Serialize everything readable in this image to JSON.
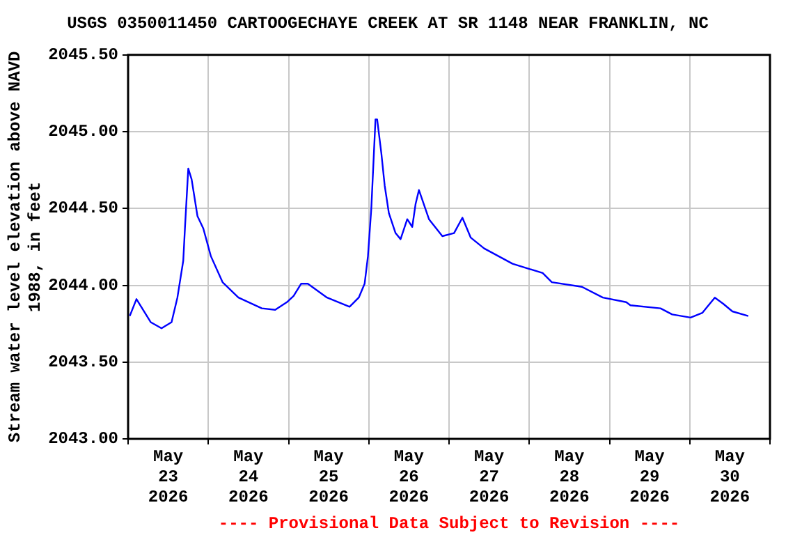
{
  "chart_data": {
    "type": "line",
    "title": "USGS 0350011450 CARTOOGECHAYE CREEK AT SR 1148 NEAR FRANKLIN, NC",
    "ylabel": "Stream water level elevation above NAVD 1988, in feet",
    "annotations": [
      "---- Provisional Data Subject to Revision ----"
    ],
    "x": [
      "2026-05-23T00:30",
      "2026-05-23T02:30",
      "2026-05-23T04:30",
      "2026-05-23T06:45",
      "2026-05-23T10:00",
      "2026-05-23T13:00",
      "2026-05-23T14:45",
      "2026-05-23T16:30",
      "2026-05-23T17:00",
      "2026-05-23T18:00",
      "2026-05-23T19:00",
      "2026-05-23T20:45",
      "2026-05-23T22:30",
      "2026-05-24T00:45",
      "2026-05-24T04:15",
      "2026-05-24T09:00",
      "2026-05-24T16:00",
      "2026-05-24T20:00",
      "2026-05-24T23:30",
      "2026-05-25T01:30",
      "2026-05-25T03:45",
      "2026-05-25T05:45",
      "2026-05-25T11:30",
      "2026-05-25T18:15",
      "2026-05-25T21:00",
      "2026-05-25T22:45",
      "2026-05-25T23:45",
      "2026-05-26T00:45",
      "2026-05-26T02:00",
      "2026-05-26T02:30",
      "2026-05-26T03:45",
      "2026-05-26T04:45",
      "2026-05-26T06:00",
      "2026-05-26T08:00",
      "2026-05-26T09:30",
      "2026-05-26T11:30",
      "2026-05-26T13:00",
      "2026-05-26T14:00",
      "2026-05-26T15:00",
      "2026-05-26T18:00",
      "2026-05-26T22:00",
      "2026-05-27T01:30",
      "2026-05-27T04:00",
      "2026-05-27T06:30",
      "2026-05-27T10:30",
      "2026-05-27T19:00",
      "2026-05-28T04:00",
      "2026-05-28T06:45",
      "2026-05-28T15:45",
      "2026-05-28T22:00",
      "2026-05-29T05:00",
      "2026-05-29T06:15",
      "2026-05-29T15:15",
      "2026-05-29T18:45",
      "2026-05-30T00:15",
      "2026-05-30T03:45",
      "2026-05-30T07:30",
      "2026-05-30T10:00",
      "2026-05-30T12:45",
      "2026-05-30T17:30"
    ],
    "series": [
      {
        "color": "#0000ff",
        "values": [
          2043.8,
          2043.91,
          2043.84,
          2043.76,
          2043.72,
          2043.76,
          2043.92,
          2044.16,
          2044.37,
          2044.76,
          2044.69,
          2044.45,
          2044.37,
          2044.19,
          2044.02,
          2043.92,
          2043.85,
          2043.84,
          2043.89,
          2043.93,
          2044.01,
          2044.01,
          2043.92,
          2043.86,
          2043.92,
          2044.01,
          2044.19,
          2044.5,
          2045.08,
          2045.08,
          2044.86,
          2044.65,
          2044.47,
          2044.34,
          2044.3,
          2044.43,
          2044.38,
          2044.53,
          2044.62,
          2044.43,
          2044.32,
          2044.34,
          2044.44,
          2044.31,
          2044.24,
          2044.14,
          2044.08,
          2044.02,
          2043.99,
          2043.92,
          2043.89,
          2043.87,
          2043.85,
          2043.81,
          2043.79,
          2043.82,
          2043.92,
          2043.88,
          2043.83,
          2043.8
        ]
      }
    ],
    "xlim": [
      "2026-05-23T00:00",
      "2026-05-31T00:00"
    ],
    "xticks": [
      {
        "value": "2026-05-23T00:00",
        "label": null
      },
      {
        "value": "2026-05-23T12:00",
        "label": "May\n23\n2026"
      },
      {
        "value": "2026-05-24T00:00",
        "label": null
      },
      {
        "value": "2026-05-24T12:00",
        "label": "May\n24\n2026"
      },
      {
        "value": "2026-05-25T00:00",
        "label": null
      },
      {
        "value": "2026-05-25T12:00",
        "label": "May\n25\n2026"
      },
      {
        "value": "2026-05-26T00:00",
        "label": null
      },
      {
        "value": "2026-05-26T12:00",
        "label": "May\n26\n2026"
      },
      {
        "value": "2026-05-27T00:00",
        "label": null
      },
      {
        "value": "2026-05-27T12:00",
        "label": "May\n27\n2026"
      },
      {
        "value": "2026-05-28T00:00",
        "label": null
      },
      {
        "value": "2026-05-28T12:00",
        "label": "May\n28\n2026"
      },
      {
        "value": "2026-05-29T00:00",
        "label": null
      },
      {
        "value": "2026-05-29T12:00",
        "label": "May\n29\n2026"
      },
      {
        "value": "2026-05-30T00:00",
        "label": null
      },
      {
        "value": "2026-05-30T12:00",
        "label": "May\n30\n2026"
      },
      {
        "value": "2026-05-31T00:00",
        "label": null
      }
    ],
    "ylim": [
      2043.0,
      2045.5
    ],
    "yticks": [
      {
        "value": 2043.0,
        "label": "2043.00"
      },
      {
        "value": 2043.5,
        "label": "2043.50"
      },
      {
        "value": 2044.0,
        "label": "2044.00"
      },
      {
        "value": 2044.5,
        "label": "2044.50"
      },
      {
        "value": 2045.0,
        "label": "2045.00"
      },
      {
        "value": 2045.5,
        "label": "2045.50"
      }
    ],
    "grid": true,
    "marker": "none",
    "line_style": "solid"
  }
}
